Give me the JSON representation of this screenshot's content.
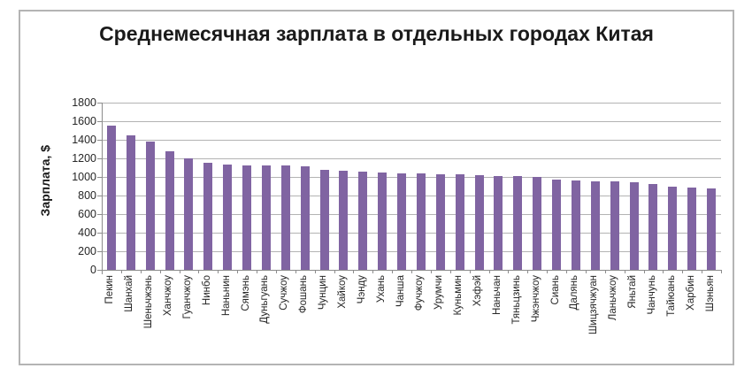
{
  "chart_data": {
    "type": "bar",
    "title": "Среднемесячная зарплата в отдельных городах Китая",
    "xlabel": "",
    "ylabel": "Зарплата, $",
    "ylim": [
      0,
      1800
    ],
    "ytick_step": 200,
    "ytick_labels": [
      "0",
      "200",
      "400",
      "600",
      "800",
      "1000",
      "1200",
      "1400",
      "1600",
      "1800"
    ],
    "grid": true,
    "legend": "none",
    "bar_color": "#8064A2",
    "categories": [
      "Пекин",
      "Шанхай",
      "Шеньчжэнь",
      "Ханчжоу",
      "Гуанчжоу",
      "Нинбо",
      "Наньнин",
      "Сямэнь",
      "Дуньгуань",
      "Сучжоу",
      "Фошань",
      "Чунцин",
      "Хайкоу",
      "Чэнду",
      "Ухань",
      "Чанша",
      "Фучжоу",
      "Урумчи",
      "Куньмин",
      "Хэфэй",
      "Наньчан",
      "Тяньцзинь",
      "Чжэнчжоу",
      "Сиань",
      "Далянь",
      "Шицзячжуан",
      "Ланьчжоу",
      "Яньтай",
      "Чанчунь",
      "Тайюань",
      "Харбин",
      "Шэньян"
    ],
    "values": [
      1550,
      1450,
      1380,
      1280,
      1200,
      1150,
      1130,
      1120,
      1120,
      1120,
      1110,
      1080,
      1070,
      1060,
      1050,
      1040,
      1040,
      1030,
      1030,
      1020,
      1010,
      1010,
      1000,
      970,
      960,
      950,
      950,
      940,
      920,
      900,
      890,
      880
    ]
  }
}
